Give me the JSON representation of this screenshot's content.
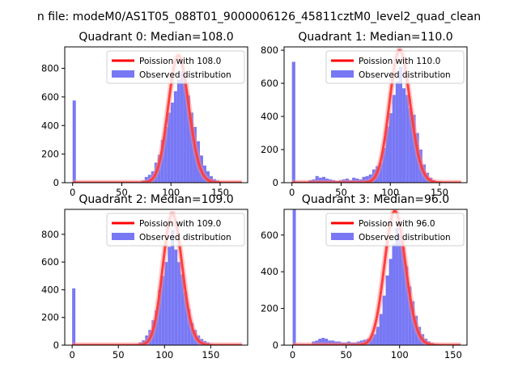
{
  "figure": {
    "suptitle": "n file: modeM0/AS1T05_088T01_9000006126_45811cztM0_level2_quad_clean",
    "colors": {
      "hist": "#7878f5",
      "fit": "#ff0000"
    }
  },
  "chart_data": [
    {
      "type": "bar",
      "title": "Quadrant 0: Median=108.0",
      "median": 108.0,
      "xlim": [
        -8,
        178
      ],
      "ylim": [
        0,
        950
      ],
      "xticks": [
        0,
        50,
        100,
        150
      ],
      "yticks": [
        0,
        200,
        400,
        600,
        800
      ],
      "grid": false,
      "legend_position": "top-right",
      "series": [
        {
          "name": "Poission with 108.0",
          "kind": "line"
        },
        {
          "name": "Observed distribution",
          "kind": "histogram",
          "bins": [
            [
              0,
              3.3,
              575
            ],
            [
              70,
              73.3,
              15
            ],
            [
              73.3,
              76.6,
              40
            ],
            [
              76.6,
              79.9,
              55
            ],
            [
              79.9,
              83.2,
              80
            ],
            [
              83.2,
              86.5,
              140
            ],
            [
              86.5,
              89.8,
              195
            ],
            [
              89.8,
              93.1,
              300
            ],
            [
              93.1,
              96.4,
              390
            ],
            [
              96.4,
              99.7,
              490
            ],
            [
              99.7,
              103,
              560
            ],
            [
              103,
              106.3,
              640
            ],
            [
              106.3,
              109.6,
              720
            ],
            [
              109.6,
              112.9,
              780
            ],
            [
              112.9,
              116.2,
              720
            ],
            [
              116.2,
              119.5,
              610
            ],
            [
              119.5,
              122.8,
              490
            ],
            [
              122.8,
              126.1,
              390
            ],
            [
              126.1,
              129.4,
              290
            ],
            [
              129.4,
              132.7,
              190
            ],
            [
              132.7,
              136,
              120
            ],
            [
              136,
              139.3,
              80
            ],
            [
              139.3,
              142.6,
              45
            ],
            [
              142.6,
              145.9,
              25
            ],
            [
              145.9,
              149.2,
              15
            ],
            [
              149.2,
              152.5,
              8
            ]
          ]
        }
      ]
    },
    {
      "type": "bar",
      "title": "Quadrant 1: Median=110.0",
      "median": 110.0,
      "xlim": [
        -8,
        178
      ],
      "ylim": [
        0,
        820
      ],
      "xticks": [
        0,
        50,
        100,
        150
      ],
      "yticks": [
        0,
        200,
        400,
        600,
        800
      ],
      "grid": false,
      "legend_position": "top-right",
      "series": [
        {
          "name": "Poission with 110.0",
          "kind": "line"
        },
        {
          "name": "Observed distribution",
          "kind": "histogram",
          "bins": [
            [
              0,
              3.4,
              730
            ],
            [
              17,
              20.4,
              15
            ],
            [
              20.4,
              23.8,
              20
            ],
            [
              23.8,
              27.2,
              40
            ],
            [
              27.2,
              30.6,
              30
            ],
            [
              30.6,
              34,
              35
            ],
            [
              34,
              37.4,
              25
            ],
            [
              37.4,
              40.8,
              20
            ],
            [
              40.8,
              44.2,
              15
            ],
            [
              44.2,
              47.6,
              10
            ],
            [
              47.6,
              51,
              15
            ],
            [
              51,
              54.4,
              20
            ],
            [
              54.4,
              57.8,
              25
            ],
            [
              57.8,
              61.2,
              15
            ],
            [
              61.2,
              64.6,
              30
            ],
            [
              64.6,
              68,
              25
            ],
            [
              68,
              71.4,
              20
            ],
            [
              71.4,
              74.8,
              35
            ],
            [
              74.8,
              78.2,
              40
            ],
            [
              78.2,
              81.6,
              50
            ],
            [
              81.6,
              85,
              80
            ],
            [
              85,
              88.4,
              100
            ],
            [
              88.4,
              91.8,
              120
            ],
            [
              91.8,
              95.2,
              210
            ],
            [
              95.2,
              98.6,
              340
            ],
            [
              98.6,
              102,
              420
            ],
            [
              102,
              105.4,
              530
            ],
            [
              105.4,
              108.8,
              610
            ],
            [
              108.8,
              112.2,
              700
            ],
            [
              112.2,
              115.6,
              570
            ],
            [
              115.6,
              119,
              530
            ],
            [
              119,
              122.4,
              450
            ],
            [
              122.4,
              125.8,
              410
            ],
            [
              125.8,
              129.2,
              300
            ],
            [
              129.2,
              132.6,
              200
            ],
            [
              132.6,
              136,
              110
            ],
            [
              136,
              139.4,
              60
            ],
            [
              139.4,
              142.8,
              30
            ],
            [
              142.8,
              146.2,
              15
            ],
            [
              146.2,
              149.6,
              8
            ]
          ]
        }
      ]
    },
    {
      "type": "bar",
      "title": "Quadrant 2: Median=109.0",
      "median": 109.0,
      "xlim": [
        -8,
        190
      ],
      "ylim": [
        0,
        980
      ],
      "xticks": [
        0,
        50,
        100,
        150
      ],
      "yticks": [
        0,
        200,
        400,
        600,
        800
      ],
      "grid": false,
      "legend_position": "top-right",
      "series": [
        {
          "name": "Poission with 109.0",
          "kind": "line"
        },
        {
          "name": "Observed distribution",
          "kind": "histogram",
          "bins": [
            [
              0,
              3.5,
              410
            ],
            [
              72,
              75.5,
              20
            ],
            [
              75.5,
              79,
              35
            ],
            [
              79,
              82.5,
              70
            ],
            [
              82.5,
              86,
              110
            ],
            [
              86,
              89.5,
              180
            ],
            [
              89.5,
              93,
              250
            ],
            [
              93,
              96.5,
              400
            ],
            [
              96.5,
              100,
              500
            ],
            [
              100,
              103.5,
              600
            ],
            [
              103.5,
              107,
              710
            ],
            [
              107,
              110.5,
              830
            ],
            [
              110.5,
              114,
              690
            ],
            [
              114,
              117.5,
              600
            ],
            [
              117.5,
              121,
              510
            ],
            [
              121,
              124.5,
              380
            ],
            [
              124.5,
              128,
              260
            ],
            [
              128,
              131.5,
              160
            ],
            [
              131.5,
              135,
              110
            ],
            [
              135,
              138.5,
              70
            ],
            [
              138.5,
              142,
              45
            ],
            [
              142,
              145.5,
              30
            ],
            [
              145.5,
              149,
              20
            ],
            [
              149,
              152.5,
              10
            ]
          ]
        }
      ]
    },
    {
      "type": "bar",
      "title": "Quadrant 3: Median=96.0",
      "median": 96.0,
      "xlim": [
        -8,
        163
      ],
      "ylim": [
        0,
        740
      ],
      "xticks": [
        0,
        50,
        100,
        150
      ],
      "yticks": [
        0,
        200,
        400,
        600
      ],
      "grid": false,
      "legend_position": "top-right",
      "series": [
        {
          "name": "Poission with 96.0",
          "kind": "line"
        },
        {
          "name": "Observed distribution",
          "kind": "histogram",
          "bins": [
            [
              0,
              3,
              740
            ],
            [
              18,
              21,
              20
            ],
            [
              21,
              24,
              25
            ],
            [
              24,
              27,
              35
            ],
            [
              27,
              30,
              40
            ],
            [
              30,
              33,
              35
            ],
            [
              33,
              36,
              25
            ],
            [
              36,
              39,
              25
            ],
            [
              39,
              42,
              20
            ],
            [
              42,
              45,
              20
            ],
            [
              45,
              48,
              15
            ],
            [
              48,
              51,
              15
            ],
            [
              51,
              54,
              20
            ],
            [
              54,
              57,
              15
            ],
            [
              57,
              60,
              15
            ],
            [
              60,
              63,
              20
            ],
            [
              63,
              66,
              25
            ],
            [
              66,
              69,
              30
            ],
            [
              69,
              72,
              35
            ],
            [
              72,
              75,
              45
            ],
            [
              75,
              78,
              60
            ],
            [
              78,
              81,
              100
            ],
            [
              81,
              84,
              170
            ],
            [
              84,
              87,
              270
            ],
            [
              87,
              90,
              380
            ],
            [
              90,
              93,
              470
            ],
            [
              93,
              96,
              550
            ],
            [
              96,
              99,
              640
            ],
            [
              99,
              102,
              600
            ],
            [
              102,
              105,
              530
            ],
            [
              105,
              108,
              430
            ],
            [
              108,
              111,
              320
            ],
            [
              111,
              114,
              240
            ],
            [
              114,
              117,
              160
            ],
            [
              117,
              120,
              100
            ],
            [
              120,
              123,
              60
            ],
            [
              123,
              126,
              35
            ],
            [
              126,
              129,
              20
            ],
            [
              129,
              132,
              12
            ],
            [
              132,
              135,
              8
            ]
          ]
        }
      ]
    }
  ]
}
